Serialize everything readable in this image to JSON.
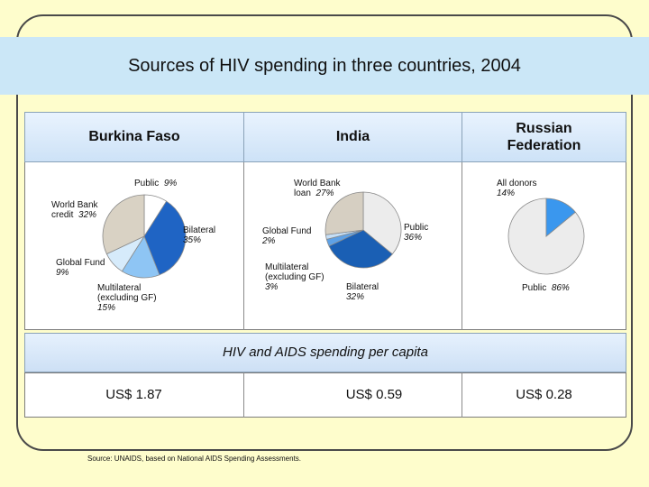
{
  "title": "Sources of HIV spending in three countries, 2004",
  "chart_data": [
    {
      "type": "pie",
      "title": "Burkina Faso",
      "slices": [
        {
          "label": "Public",
          "value": 9,
          "display": "9%",
          "color": "#ffffff"
        },
        {
          "label": "Bilateral",
          "value": 35,
          "display": "35%",
          "color": "#1f64c4"
        },
        {
          "label": "Multilateral (excluding GF)",
          "value": 15,
          "display": "15%",
          "color": "#8ec5f4"
        },
        {
          "label": "Global Fund",
          "value": 9,
          "display": "9%",
          "color": "#d6ebfb"
        },
        {
          "label": "World Bank credit",
          "value": 32,
          "display": "32%",
          "color": "#d9d2c4"
        }
      ]
    },
    {
      "type": "pie",
      "title": "India",
      "slices": [
        {
          "label": "Public",
          "value": 36,
          "display": "36%",
          "color": "#ececec"
        },
        {
          "label": "Bilateral",
          "value": 32,
          "display": "32%",
          "color": "#1a5fb4"
        },
        {
          "label": "Multilateral (excluding GF)",
          "value": 3,
          "display": "3%",
          "color": "#5ea1e6"
        },
        {
          "label": "Global Fund",
          "value": 2,
          "display": "2%",
          "color": "#c4def6"
        },
        {
          "label": "World Bank loan",
          "value": 27,
          "display": "27%",
          "color": "#d6cfc2"
        }
      ]
    },
    {
      "type": "pie",
      "title": "Russian Federation",
      "slices": [
        {
          "label": "Public",
          "value": 86,
          "display": "86%",
          "color": "#ececec"
        },
        {
          "label": "All donors",
          "value": 14,
          "display": "14%",
          "color": "#3a97ee"
        }
      ]
    }
  ],
  "labels": {
    "bf_public": "Public",
    "bf_public_v": "9%",
    "bf_bilateral": "Bilateral",
    "bf_bilateral_v": "35%",
    "bf_wb_1": "World Bank",
    "bf_wb_2": "credit",
    "bf_wb_v": "32%",
    "bf_gf": "Global Fund",
    "bf_gf_v": "9%",
    "bf_multi_1": "Multilateral",
    "bf_multi_2": "(excluding GF)",
    "bf_multi_v": "15%",
    "in_wb_1": "World Bank",
    "in_wb_2": "loan",
    "in_wb_v": "27%",
    "in_public": "Public",
    "in_public_v": "36%",
    "in_gf": "Global Fund",
    "in_gf_v": "2%",
    "in_multi_1": "Multilateral",
    "in_multi_2": "(excluding GF)",
    "in_multi_v": "3%",
    "in_bilateral": "Bilateral",
    "in_bilateral_v": "32%",
    "ru_donors": "All donors",
    "ru_donors_v": "14%",
    "ru_public": "Public",
    "ru_public_v": "86%"
  },
  "countries": {
    "burkina": "Burkina Faso",
    "india": "India",
    "russia_1": "Russian",
    "russia_2": "Federation"
  },
  "per_capita": {
    "title": "HIV and AIDS spending per capita",
    "burkina": "US$ 1.87",
    "india": "US$ 0.59",
    "russia": "US$ 0.28"
  },
  "source": "Source: UNAIDS, based on National AIDS Spending Assessments."
}
